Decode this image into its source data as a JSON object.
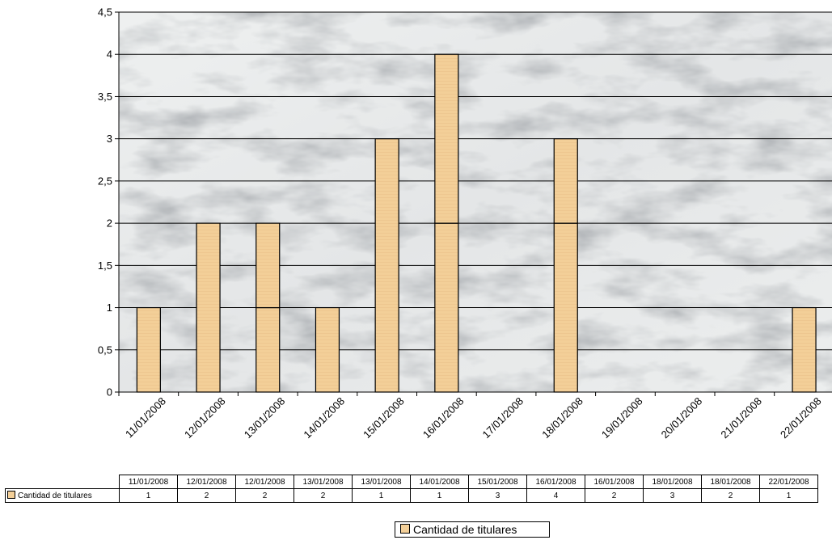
{
  "chart_data": {
    "type": "bar",
    "stacked": true,
    "background": "marble texture",
    "y_axis": {
      "ylim": [
        0,
        4.5
      ],
      "ticks": [
        "0",
        "0,5",
        "1",
        "1,5",
        "2",
        "2,5",
        "3",
        "3,5",
        "4",
        "4,5"
      ],
      "grid": true
    },
    "categories": [
      "11/01/2008",
      "12/01/2008",
      "13/01/2008",
      "14/01/2008",
      "15/01/2008",
      "16/01/2008",
      "17/01/2008",
      "18/01/2008",
      "19/01/2008",
      "20/01/2008",
      "21/01/2008",
      "22/01/2008"
    ],
    "stacks": [
      [
        1
      ],
      [
        2
      ],
      [
        1,
        1
      ],
      [
        1
      ],
      [
        3
      ],
      [
        2,
        2
      ],
      [],
      [
        2,
        1
      ],
      [],
      [],
      [],
      [
        1
      ]
    ],
    "series": [
      {
        "name": "Cantidad de titulares",
        "color": "#f3cf98"
      }
    ],
    "legend": {
      "position": "bottom",
      "label": "Cantidad de titulares"
    },
    "data_table": {
      "headers": [
        "11/01/2008",
        "12/01/2008",
        "12/01/2008",
        "13/01/2008",
        "13/01/2008",
        "14/01/2008",
        "15/01/2008",
        "16/01/2008",
        "16/01/2008",
        "18/01/2008",
        "18/01/2008",
        "22/01/2008"
      ],
      "row_label": "Cantidad de titulares",
      "values": [
        "1",
        "2",
        "2",
        "2",
        "1",
        "1",
        "3",
        "4",
        "2",
        "3",
        "2",
        "1"
      ]
    }
  }
}
